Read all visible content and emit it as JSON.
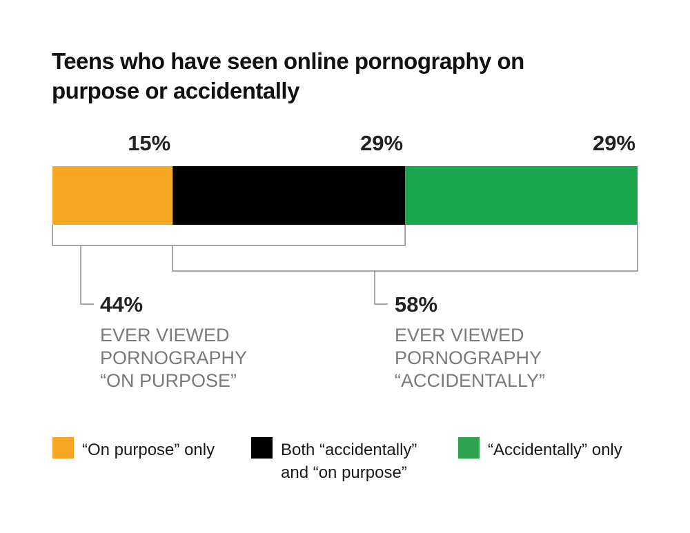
{
  "chart_data": {
    "type": "bar",
    "orientation": "horizontal-stacked",
    "title": [
      "Teens who have seen online pornography on",
      "purpose or accidentally"
    ],
    "xlim": [
      0,
      73
    ],
    "series": [
      {
        "name": "“On purpose” only",
        "value": 15,
        "label": "15%",
        "color": "#f5a623"
      },
      {
        "name": "Both “accidentally” and “on purpose”",
        "value": 29,
        "label": "29%",
        "color": "#000000"
      },
      {
        "name": "“Accidentally” only",
        "value": 29,
        "label": "29%",
        "color": "#1aa64a"
      }
    ],
    "brackets": [
      {
        "value": "44%",
        "caption": [
          "EVER VIEWED",
          "PORNOGRAPHY",
          "“ON PURPOSE”"
        ],
        "covers": [
          "“On purpose” only",
          "Both “accidentally” and “on purpose”"
        ]
      },
      {
        "value": "58%",
        "caption": [
          "EVER VIEWED",
          "PORNOGRAPHY",
          "“ACCIDENTALLY”"
        ],
        "covers": [
          "Both “accidentally” and “on purpose”",
          "“Accidentally” only"
        ]
      }
    ],
    "legend": {
      "placement": "bottom",
      "items": [
        {
          "lines": [
            "“On purpose” only"
          ],
          "color": "#f5a623"
        },
        {
          "lines": [
            "Both “accidentally”",
            "and “on purpose”"
          ],
          "color": "#000000"
        },
        {
          "lines": [
            "“Accidentally” only"
          ],
          "color": "#2ea44f"
        }
      ]
    }
  }
}
